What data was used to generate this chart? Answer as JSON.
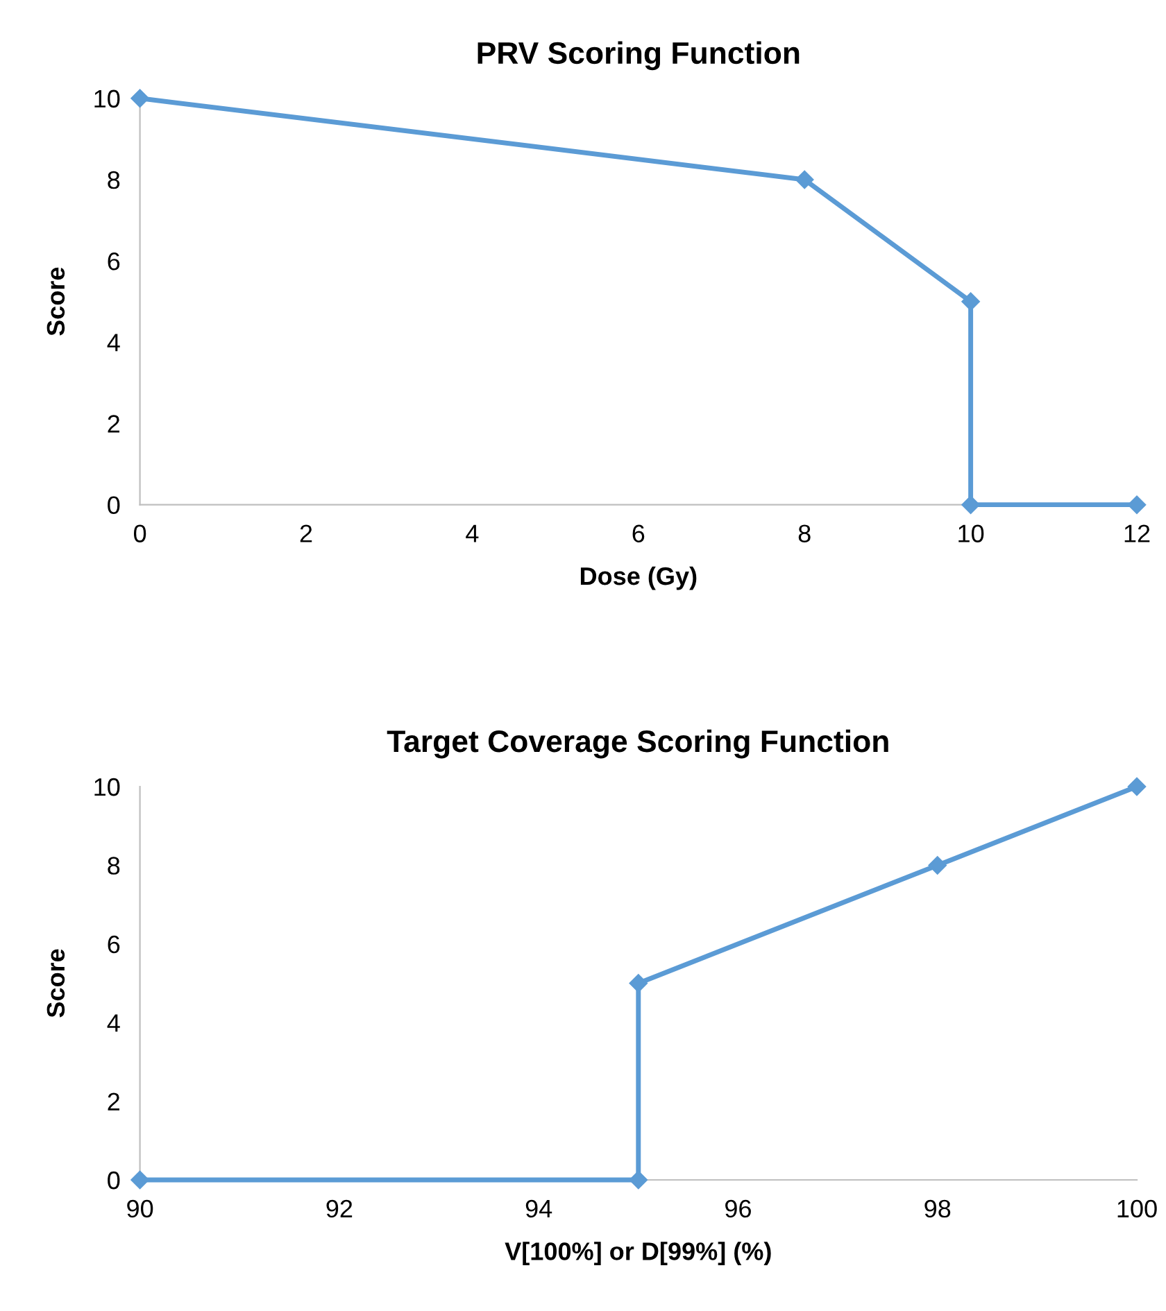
{
  "chart_data": [
    {
      "type": "line",
      "title": "PRV Scoring Function",
      "xlabel": "Dose (Gy)",
      "ylabel": "Score",
      "series": [
        {
          "color": "#5b9bd5",
          "x": [
            0,
            8,
            10,
            10,
            12
          ],
          "values": [
            10,
            8,
            5,
            0,
            0
          ]
        }
      ],
      "xlim": [
        0,
        12
      ],
      "xticks": [
        0,
        2,
        4,
        6,
        8,
        10,
        12
      ],
      "ylim": [
        0,
        10
      ],
      "yticks": [
        0,
        2,
        4,
        6,
        8,
        10
      ],
      "grid": false,
      "marker": "diamond",
      "line_style": "solid"
    },
    {
      "type": "line",
      "title": "Target Coverage Scoring Function",
      "xlabel": "V[100%] or D[99%] (%)",
      "ylabel": "Score",
      "series": [
        {
          "color": "#5b9bd5",
          "x": [
            90,
            95,
            95,
            98,
            100
          ],
          "values": [
            0,
            0,
            5,
            8,
            10
          ]
        }
      ],
      "xlim": [
        90,
        100
      ],
      "xticks": [
        90,
        92,
        94,
        96,
        98,
        100
      ],
      "ylim": [
        0,
        10
      ],
      "yticks": [
        0,
        2,
        4,
        6,
        8,
        10
      ],
      "grid": false,
      "marker": "diamond",
      "line_style": "solid"
    }
  ]
}
